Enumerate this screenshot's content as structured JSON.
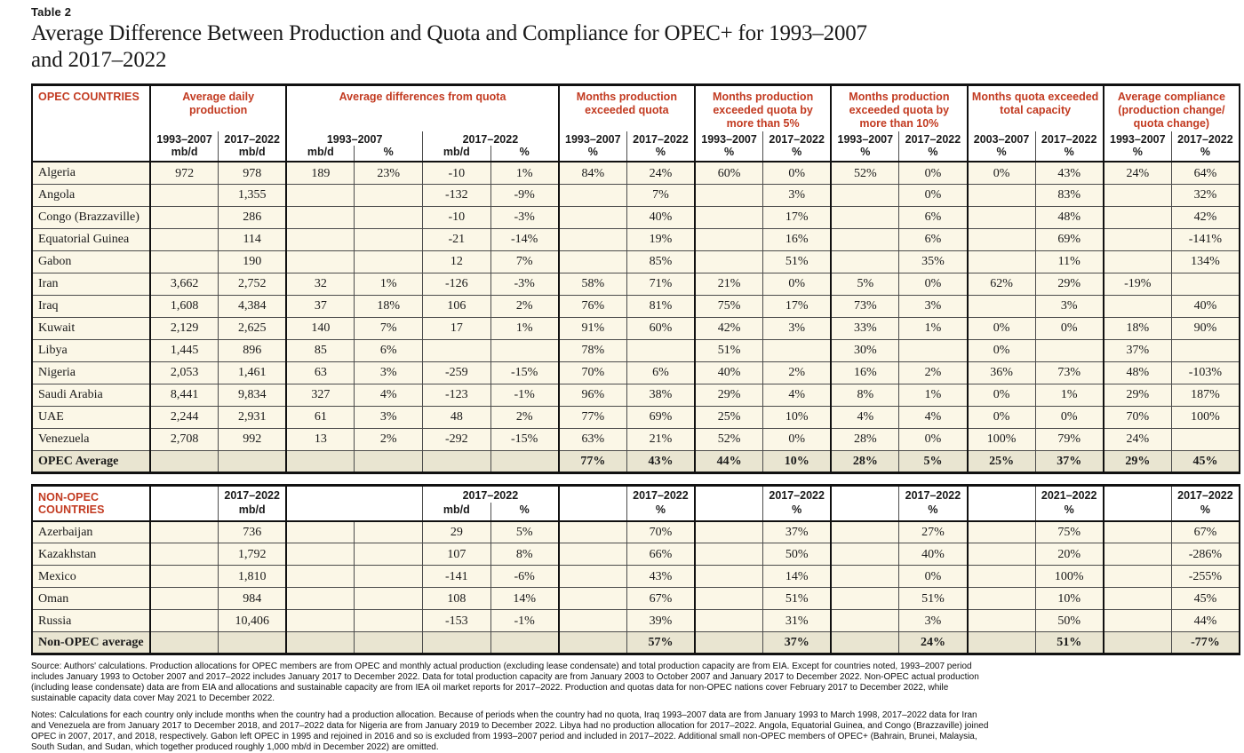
{
  "page": {
    "table_label": "Table 2",
    "title_line1": "Average Difference Between Production and Quota and Compliance for OPEC+ for 1993–2007",
    "title_line2": "and 2017–2022"
  },
  "colors": {
    "accent_red": "#c23a20",
    "row_cream": "#fbf7e7",
    "summary_khaki": "#e9e5d1"
  },
  "opec_header": {
    "country": "OPEC COUNTRIES",
    "groups": [
      {
        "label": "Average daily production"
      },
      {
        "label": "Average differences from quota"
      },
      {
        "label": "Months production exceeded quota"
      },
      {
        "label": "Months production exceeded quota by more than 5%"
      },
      {
        "label": "Months production exceeded quota by more than 10%"
      },
      {
        "label": "Months quota exceeded total capacity"
      },
      {
        "label": "Average compliance (production change/ quota change)"
      }
    ],
    "periods": [
      "1993–2007",
      "2017–2022",
      "1993–2007",
      "2017–2022",
      "1993–2007",
      "2017–2022",
      "1993–2007",
      "2017–2022",
      "1993–2007",
      "2017–2022",
      "2003–2007",
      "2017–2022",
      "1993–2007",
      "2017–2022"
    ],
    "units": [
      "mb/d",
      "mb/d",
      "mb/d",
      "%",
      "mb/d",
      "%",
      "%",
      "%",
      "%",
      "%",
      "%",
      "%",
      "%",
      "%",
      "%",
      "%"
    ]
  },
  "opec_rows": [
    {
      "country": "Algeria",
      "values": [
        "972",
        "978",
        "189",
        "23%",
        "-10",
        "1%",
        "84%",
        "24%",
        "60%",
        "0%",
        "52%",
        "0%",
        "0%",
        "43%",
        "24%",
        "64%"
      ]
    },
    {
      "country": "Angola",
      "values": [
        "",
        "1,355",
        "",
        "",
        "-132",
        "-9%",
        "",
        "7%",
        "",
        "3%",
        "",
        "0%",
        "",
        "83%",
        "",
        "32%"
      ]
    },
    {
      "country": "Congo (Brazzaville)",
      "values": [
        "",
        "286",
        "",
        "",
        "-10",
        "-3%",
        "",
        "40%",
        "",
        "17%",
        "",
        "6%",
        "",
        "48%",
        "",
        "42%"
      ]
    },
    {
      "country": "Equatorial Guinea",
      "values": [
        "",
        "114",
        "",
        "",
        "-21",
        "-14%",
        "",
        "19%",
        "",
        "16%",
        "",
        "6%",
        "",
        "69%",
        "",
        "-141%"
      ]
    },
    {
      "country": "Gabon",
      "values": [
        "",
        "190",
        "",
        "",
        "12",
        "7%",
        "",
        "85%",
        "",
        "51%",
        "",
        "35%",
        "",
        "11%",
        "",
        "134%"
      ]
    },
    {
      "country": "Iran",
      "values": [
        "3,662",
        "2,752",
        "32",
        "1%",
        "-126",
        "-3%",
        "58%",
        "71%",
        "21%",
        "0%",
        "5%",
        "0%",
        "62%",
        "29%",
        "-19%",
        ""
      ]
    },
    {
      "country": "Iraq",
      "values": [
        "1,608",
        "4,384",
        "37",
        "18%",
        "106",
        "2%",
        "76%",
        "81%",
        "75%",
        "17%",
        "73%",
        "3%",
        "",
        "3%",
        "",
        "40%"
      ]
    },
    {
      "country": "Kuwait",
      "values": [
        "2,129",
        "2,625",
        "140",
        "7%",
        "17",
        "1%",
        "91%",
        "60%",
        "42%",
        "3%",
        "33%",
        "1%",
        "0%",
        "0%",
        "18%",
        "90%"
      ]
    },
    {
      "country": "Libya",
      "values": [
        "1,445",
        "896",
        "85",
        "6%",
        "",
        "",
        "78%",
        "",
        "51%",
        "",
        "30%",
        "",
        "0%",
        "",
        "37%",
        ""
      ]
    },
    {
      "country": "Nigeria",
      "values": [
        "2,053",
        "1,461",
        "63",
        "3%",
        "-259",
        "-15%",
        "70%",
        "6%",
        "40%",
        "2%",
        "16%",
        "2%",
        "36%",
        "73%",
        "48%",
        "-103%"
      ]
    },
    {
      "country": "Saudi Arabia",
      "values": [
        "8,441",
        "9,834",
        "327",
        "4%",
        "-123",
        "-1%",
        "96%",
        "38%",
        "29%",
        "4%",
        "8%",
        "1%",
        "0%",
        "1%",
        "29%",
        "187%"
      ]
    },
    {
      "country": "UAE",
      "values": [
        "2,244",
        "2,931",
        "61",
        "3%",
        "48",
        "2%",
        "77%",
        "69%",
        "25%",
        "10%",
        "4%",
        "4%",
        "0%",
        "0%",
        "70%",
        "100%"
      ]
    },
    {
      "country": "Venezuela",
      "values": [
        "2,708",
        "992",
        "13",
        "2%",
        "-292",
        "-15%",
        "63%",
        "21%",
        "52%",
        "0%",
        "28%",
        "0%",
        "100%",
        "79%",
        "24%",
        ""
      ]
    },
    {
      "country": "OPEC Average",
      "summary": true,
      "values": [
        "",
        "",
        "",
        "",
        "",
        "",
        "77%",
        "43%",
        "44%",
        "10%",
        "28%",
        "5%",
        "25%",
        "37%",
        "29%",
        "45%"
      ]
    }
  ],
  "nonopec_header": {
    "country": "NON-OPEC COUNTRIES",
    "periods": [
      "2017–2022",
      "2017–2022",
      "2017–2022",
      "2017–2022",
      "2017–2022",
      "2021–2022",
      "2017–2022"
    ],
    "units": [
      "mb/d",
      "mb/d",
      "%",
      "%",
      "%",
      "%",
      "%",
      "%"
    ]
  },
  "nonopec_rows": [
    {
      "country": "Azerbaijan",
      "values": [
        "",
        "736",
        "",
        "",
        "29",
        "5%",
        "",
        "70%",
        "",
        "37%",
        "",
        "27%",
        "",
        "75%",
        "",
        "67%"
      ]
    },
    {
      "country": "Kazakhstan",
      "values": [
        "",
        "1,792",
        "",
        "",
        "107",
        "8%",
        "",
        "66%",
        "",
        "50%",
        "",
        "40%",
        "",
        "20%",
        "",
        "-286%"
      ]
    },
    {
      "country": "Mexico",
      "values": [
        "",
        "1,810",
        "",
        "",
        "-141",
        "-6%",
        "",
        "43%",
        "",
        "14%",
        "",
        "0%",
        "",
        "100%",
        "",
        "-255%"
      ]
    },
    {
      "country": "Oman",
      "values": [
        "",
        "984",
        "",
        "",
        "108",
        "14%",
        "",
        "67%",
        "",
        "51%",
        "",
        "51%",
        "",
        "10%",
        "",
        "45%"
      ]
    },
    {
      "country": "Russia",
      "values": [
        "",
        "10,406",
        "",
        "",
        "-153",
        "-1%",
        "",
        "39%",
        "",
        "31%",
        "",
        "3%",
        "",
        "50%",
        "",
        "44%"
      ]
    },
    {
      "country": "Non-OPEC average",
      "summary": true,
      "values": [
        "",
        "",
        "",
        "",
        "",
        "",
        "",
        "57%",
        "",
        "37%",
        "",
        "24%",
        "",
        "51%",
        "",
        "-77%"
      ]
    }
  ],
  "footnotes": {
    "source": "Source: Authors' calculations. Production allocations for OPEC members are from OPEC and monthly actual production (excluding lease condensate) and total production capacity are from EIA. Except for countries noted, 1993–2007 period includes January 1993 to October 2007 and 2017–2022 includes January 2017 to December 2022. Data for total production capacity are from January 2003 to October 2007 and January 2017 to December 2022. Non-OPEC actual production (including lease condensate) data are from EIA and allocations and sustainable capacity are from IEA oil market reports for 2017–2022. Production and quotas data for non-OPEC nations cover February 2017 to December 2022, while sustainable capacity data cover May 2021 to December 2022.",
    "notes": "Notes: Calculations for each country only include months when the country had a production allocation. Because of periods when the country had no quota, Iraq 1993–2007 data are from January 1993 to March 1998, 2017–2022 data for Iran and Venezuela are from January 2017 to December 2018, and 2017–2022 data for Nigeria are from January 2019 to December 2022. Libya had no production allocation for 2017–2022. Angola, Equatorial Guinea, and Congo (Brazzaville) joined OPEC in 2007, 2017, and 2018, respectively. Gabon left OPEC in 1995 and rejoined in 2016 and so is excluded from 1993–2007 period and included in 2017–2022. Additional small non-OPEC members of OPEC+ (Bahrain, Brunei, Malaysia, South Sudan, and Sudan, which together produced roughly 1,000 mb/d in December 2022) are omitted."
  }
}
